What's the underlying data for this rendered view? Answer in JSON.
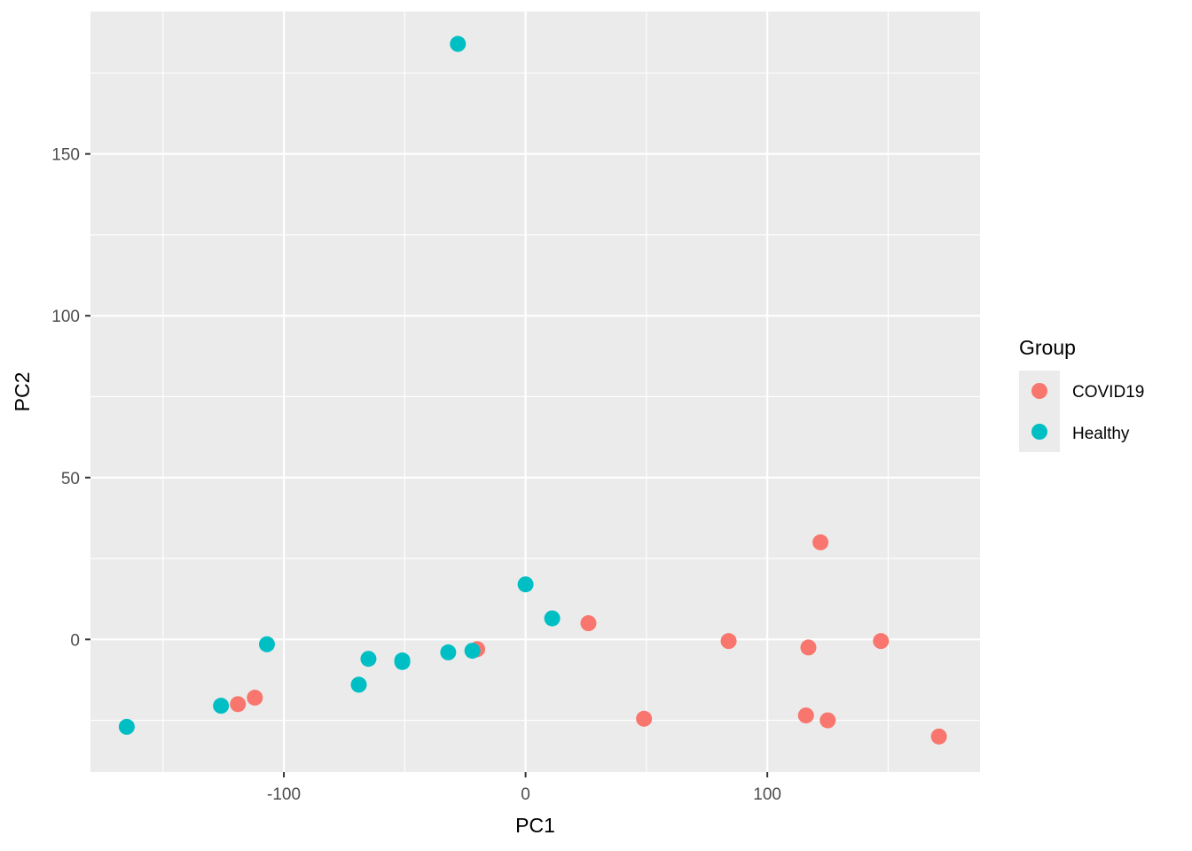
{
  "chart_data": {
    "type": "scatter",
    "xlabel": "PC1",
    "ylabel": "PC2",
    "xlim": [
      -180,
      188
    ],
    "ylim": [
      -41,
      194
    ],
    "x_ticks_major": [
      -100,
      0,
      100
    ],
    "x_ticks_minor": [
      -150,
      -50,
      50,
      150
    ],
    "y_ticks_major": [
      0,
      50,
      100,
      150
    ],
    "y_ticks_minor": [
      -25,
      25,
      75,
      125,
      175
    ],
    "grid": true,
    "panel_background": "#EBEBEB",
    "legend": {
      "title": "Group",
      "position": "right"
    },
    "series": [
      {
        "name": "COVID19",
        "color": "#F8766D",
        "points": [
          {
            "x": -119,
            "y": -20
          },
          {
            "x": -112,
            "y": -18
          },
          {
            "x": -20,
            "y": -3
          },
          {
            "x": 26,
            "y": 5
          },
          {
            "x": 49,
            "y": -24.5
          },
          {
            "x": 84,
            "y": -0.5
          },
          {
            "x": 116,
            "y": -23.5
          },
          {
            "x": 117,
            "y": -2.5
          },
          {
            "x": 122,
            "y": 30
          },
          {
            "x": 125,
            "y": -25
          },
          {
            "x": 147,
            "y": -0.5
          },
          {
            "x": 171,
            "y": -30
          }
        ]
      },
      {
        "name": "Healthy",
        "color": "#00BFC4",
        "points": [
          {
            "x": -165,
            "y": -27
          },
          {
            "x": -126,
            "y": -20.5
          },
          {
            "x": -107,
            "y": -1.5
          },
          {
            "x": -69,
            "y": -14
          },
          {
            "x": -65,
            "y": -6
          },
          {
            "x": -51,
            "y": -7
          },
          {
            "x": -51,
            "y": -6.5
          },
          {
            "x": -32,
            "y": -4
          },
          {
            "x": -22,
            "y": -3.5
          },
          {
            "x": -28,
            "y": 184
          },
          {
            "x": 0,
            "y": 17
          },
          {
            "x": 11,
            "y": 6.5
          }
        ]
      }
    ]
  }
}
